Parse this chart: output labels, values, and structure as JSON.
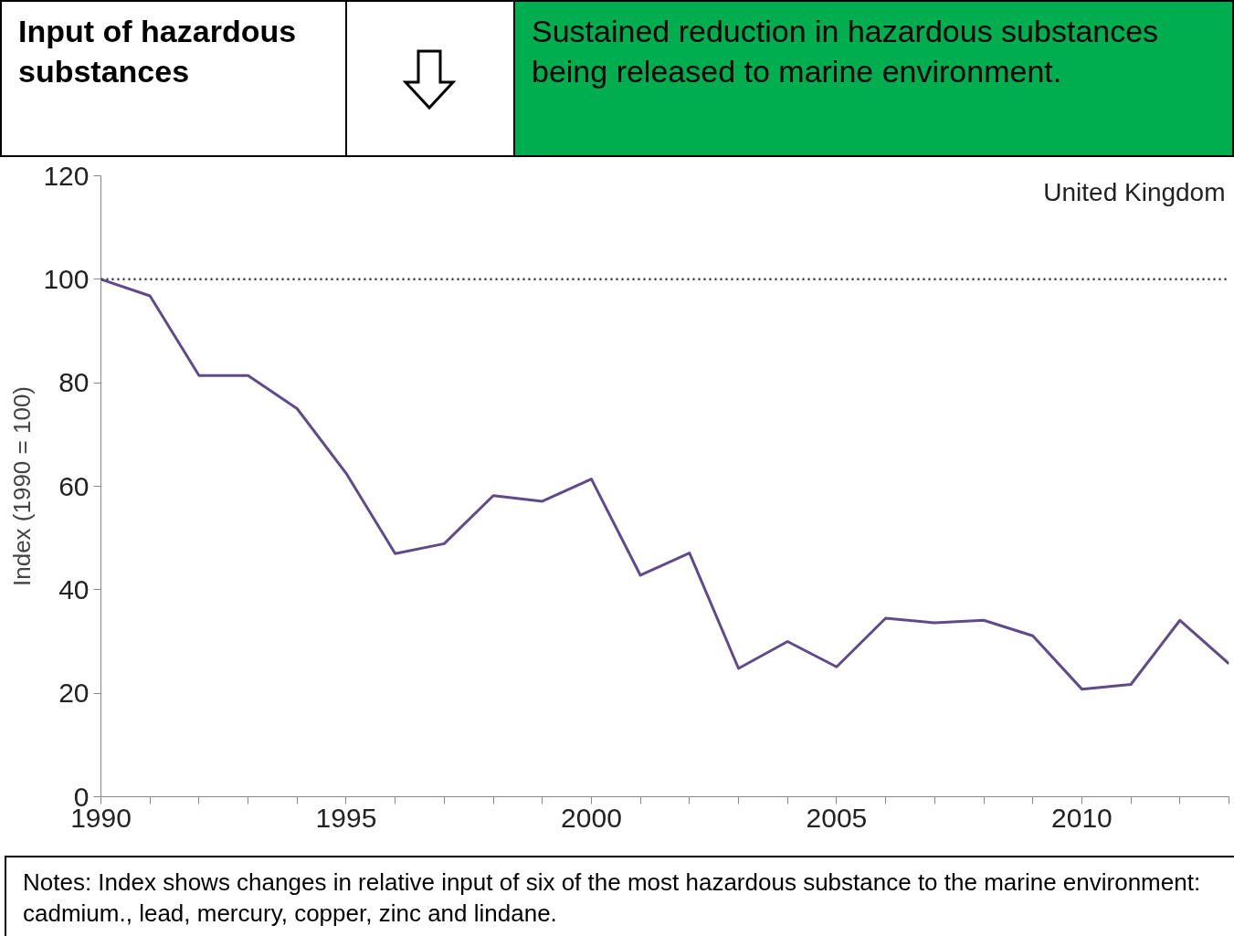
{
  "chart_data": {
    "type": "line",
    "title": "Input of hazardous substances",
    "subtitle": "Sustained reduction in hazardous substances being released to marine environment.",
    "ylabel": "Index (1990 = 100)",
    "x": [
      1990,
      1991,
      1992,
      1993,
      1994,
      1995,
      1996,
      1997,
      1998,
      1999,
      2000,
      2001,
      2002,
      2003,
      2004,
      2005,
      2006,
      2007,
      2008,
      2009,
      2010,
      2011,
      2012,
      2013
    ],
    "series": [
      {
        "color": "#5f4b8b",
        "values": [
          100,
          96.8,
          81.4,
          81.4,
          75,
          62.5,
          47,
          48.9,
          58.2,
          57.1,
          61.4,
          42.8,
          47.1,
          24.8,
          30,
          25.1,
          34.5,
          33.6,
          34.1,
          31.1,
          20.8,
          21.7,
          34.1,
          25.7
        ]
      }
    ],
    "xlim": [
      1990,
      2013
    ],
    "xticks": [
      1990,
      {
        "value": 1991,
        "label": null
      },
      {
        "value": 1992,
        "label": null
      },
      {
        "value": 1993,
        "label": null
      },
      {
        "value": 1994,
        "label": null
      },
      1995,
      {
        "value": 1996,
        "label": null
      },
      {
        "value": 1997,
        "label": null
      },
      {
        "value": 1998,
        "label": null
      },
      {
        "value": 1999,
        "label": null
      },
      2000,
      {
        "value": 2001,
        "label": null
      },
      {
        "value": 2002,
        "label": null
      },
      {
        "value": 2003,
        "label": null
      },
      {
        "value": 2004,
        "label": null
      },
      2005,
      {
        "value": 2006,
        "label": null
      },
      {
        "value": 2007,
        "label": null
      },
      {
        "value": 2008,
        "label": null
      },
      {
        "value": 2009,
        "label": null
      },
      2010,
      {
        "value": 2011,
        "label": null
      },
      {
        "value": 2012,
        "label": null
      },
      {
        "value": 2013,
        "label": null
      }
    ],
    "ylim": [
      0,
      120
    ],
    "yticks": [
      0,
      20,
      40,
      60,
      80,
      100,
      120
    ],
    "ref_lines": [
      {
        "axis": "y",
        "value": 100,
        "color": "#333333",
        "line_style": "dotted"
      }
    ],
    "line_style": "solid",
    "grid": false,
    "annotations": [
      "United Kingdom",
      "Notes: Index shows changes in relative input of six of the most hazardous substance to the marine environment: cadmium., lead, mercury, copper, zinc and lindane."
    ]
  }
}
